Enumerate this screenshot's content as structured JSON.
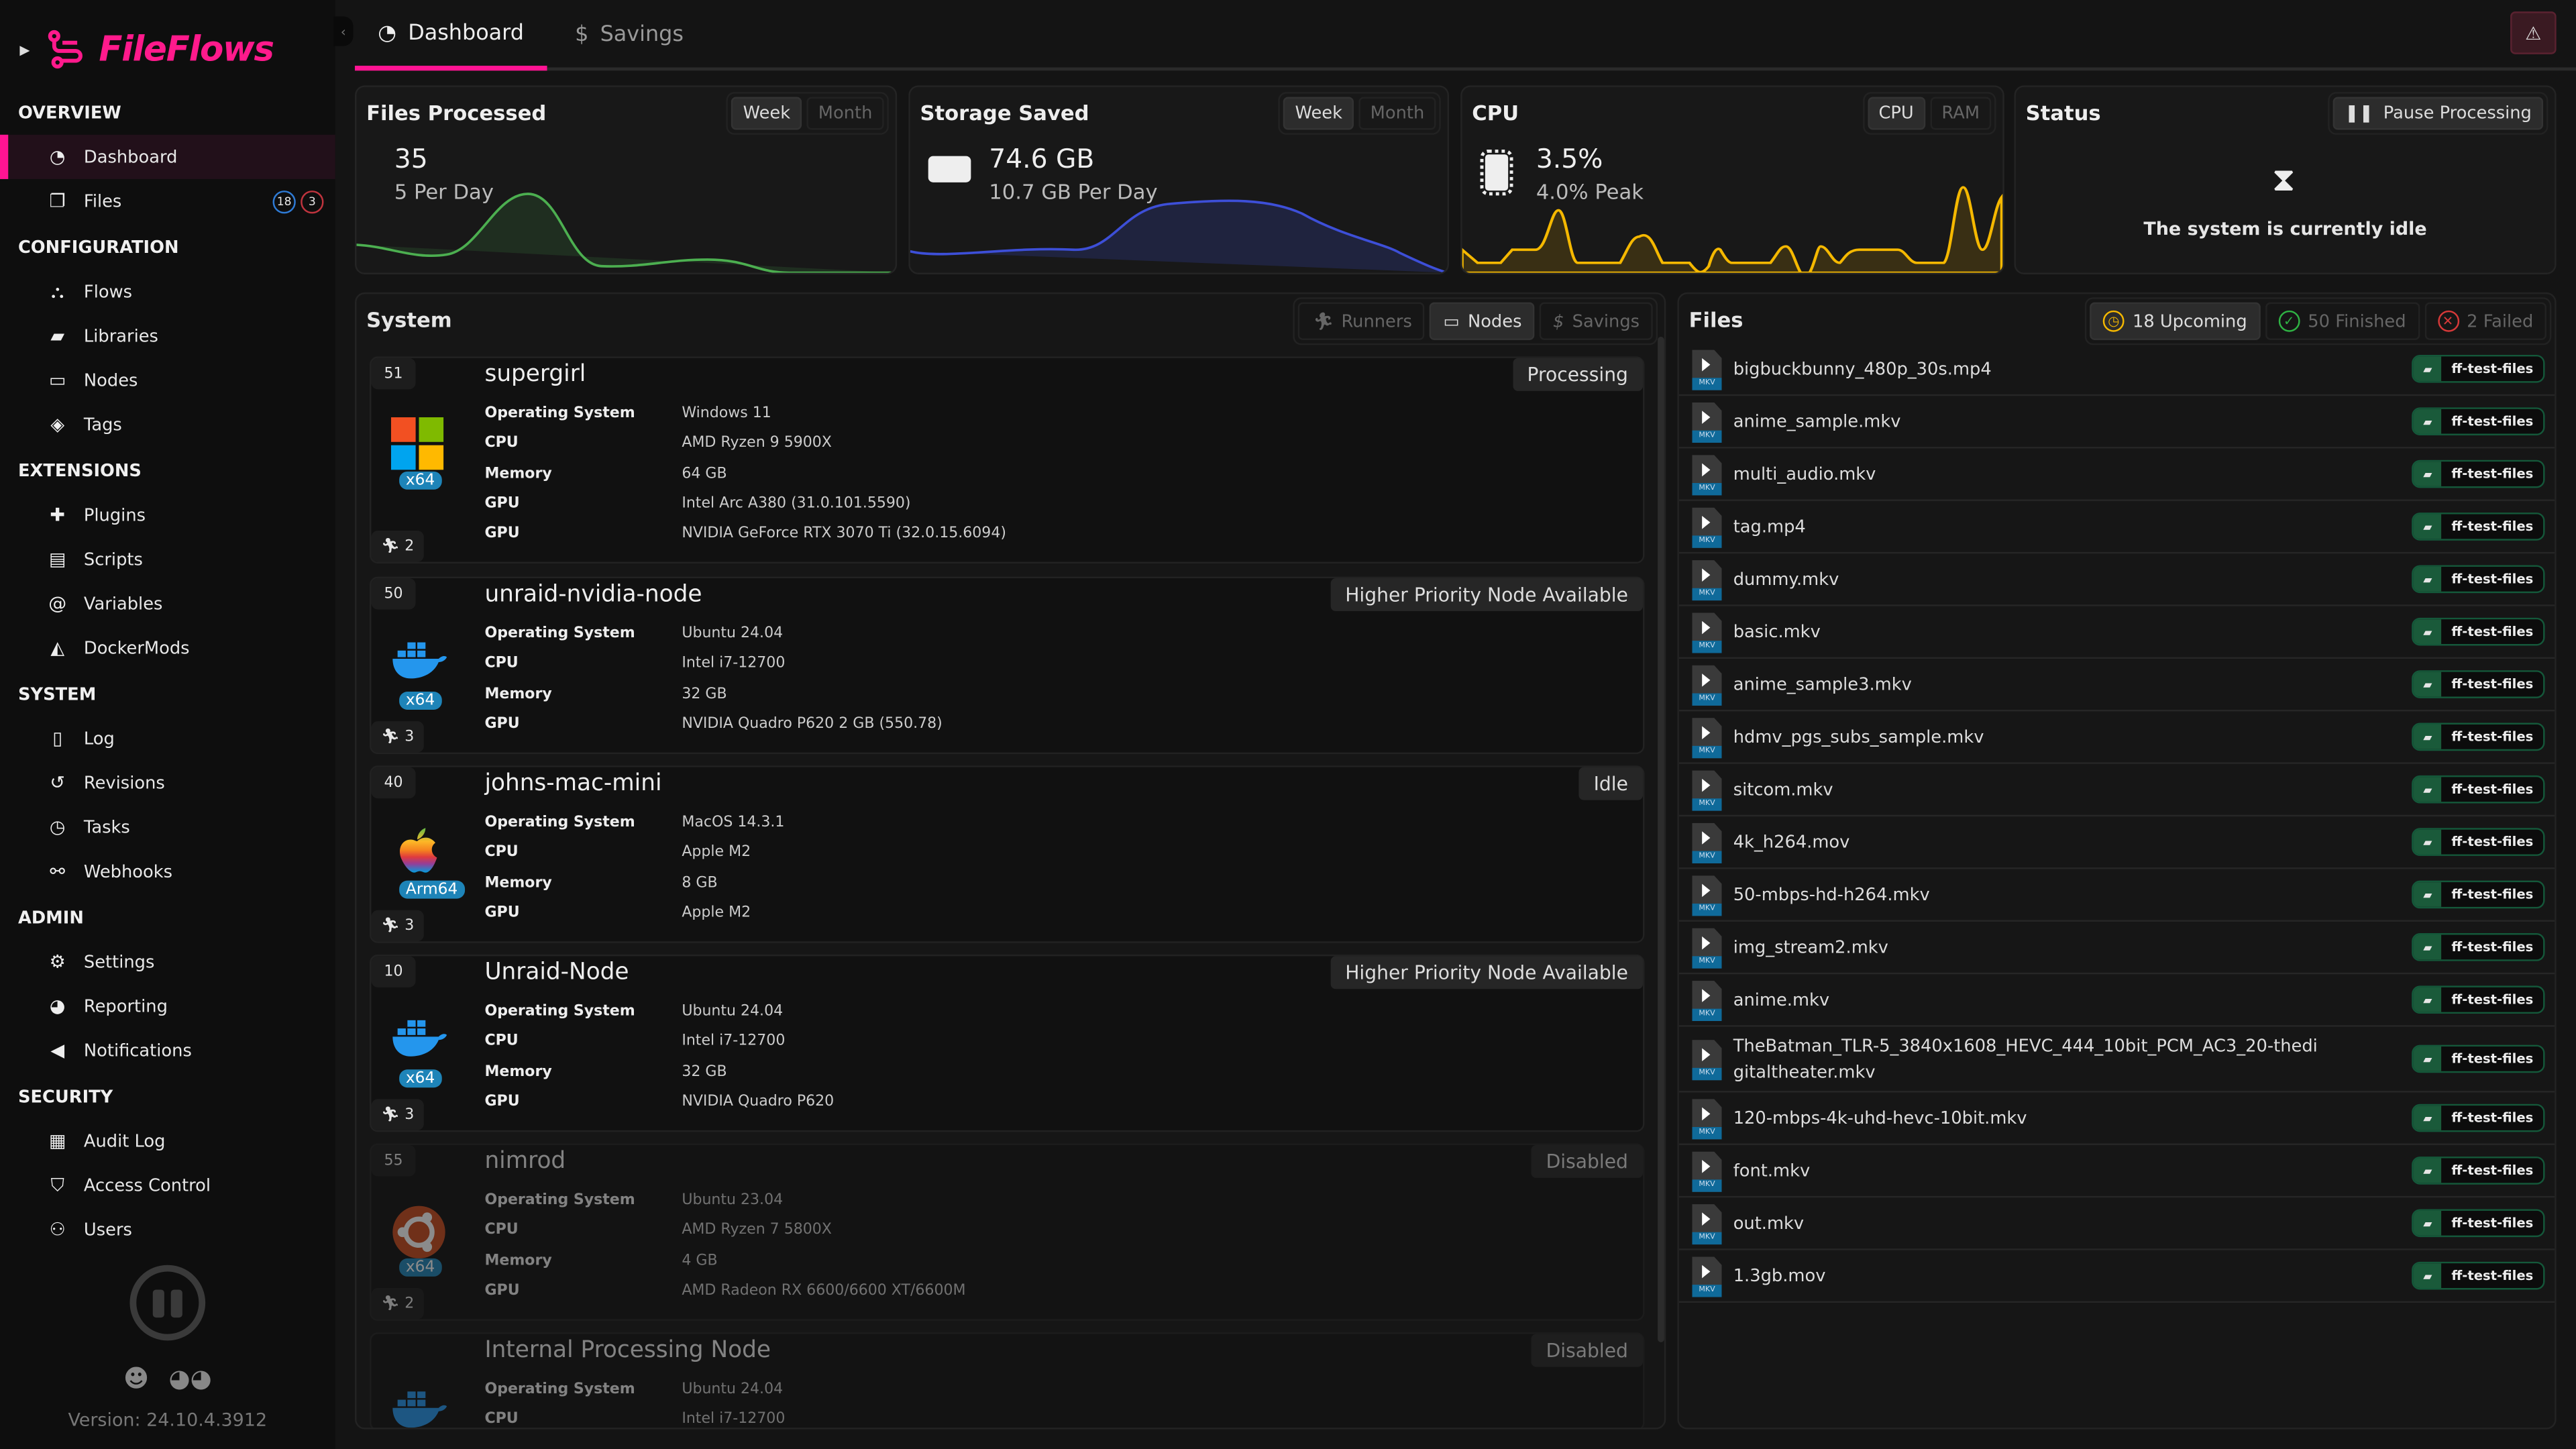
{
  "app": {
    "name": "FileFlows",
    "version": "Version: 24.10.4.3912",
    "accent": "#ff1493"
  },
  "sidebar": {
    "sections": [
      {
        "title": "OVERVIEW",
        "items": [
          {
            "label": "Dashboard",
            "icon": "pie-chart-icon",
            "active": true
          },
          {
            "label": "Files",
            "icon": "files-icon",
            "badges": [
              "18",
              "3"
            ]
          }
        ]
      },
      {
        "title": "CONFIGURATION",
        "items": [
          {
            "label": "Flows",
            "icon": "sitemap-icon"
          },
          {
            "label": "Libraries",
            "icon": "folder-icon"
          },
          {
            "label": "Nodes",
            "icon": "desktop-icon"
          },
          {
            "label": "Tags",
            "icon": "tags-icon"
          }
        ]
      },
      {
        "title": "EXTENSIONS",
        "items": [
          {
            "label": "Plugins",
            "icon": "puzzle-icon"
          },
          {
            "label": "Scripts",
            "icon": "scroll-icon"
          },
          {
            "label": "Variables",
            "icon": "at-icon"
          },
          {
            "label": "DockerMods",
            "icon": "docker-icon"
          }
        ]
      },
      {
        "title": "SYSTEM",
        "items": [
          {
            "label": "Log",
            "icon": "file-text-icon"
          },
          {
            "label": "Revisions",
            "icon": "history-icon"
          },
          {
            "label": "Tasks",
            "icon": "clock-icon"
          },
          {
            "label": "Webhooks",
            "icon": "webhook-icon"
          }
        ]
      },
      {
        "title": "ADMIN",
        "items": [
          {
            "label": "Settings",
            "icon": "cogs-icon"
          },
          {
            "label": "Reporting",
            "icon": "chart-pie-icon"
          },
          {
            "label": "Notifications",
            "icon": "bullhorn-icon"
          }
        ]
      },
      {
        "title": "SECURITY",
        "items": [
          {
            "label": "Audit Log",
            "icon": "clipboard-icon"
          },
          {
            "label": "Access Control",
            "icon": "shield-icon"
          },
          {
            "label": "Users",
            "icon": "users-icon"
          }
        ]
      }
    ]
  },
  "tabs": [
    {
      "label": "Dashboard",
      "icon": "pie-chart-icon",
      "active": true
    },
    {
      "label": "Savings",
      "icon": "dollar-icon",
      "active": false
    }
  ],
  "cards": {
    "files": {
      "title": "Files Processed",
      "range": [
        "Week",
        "Month"
      ],
      "selected": "Week",
      "value": "35",
      "sub": "5 Per Day",
      "color": "#4caf50"
    },
    "storage": {
      "title": "Storage Saved",
      "range": [
        "Week",
        "Month"
      ],
      "selected": "Week",
      "value": "74.6 GB",
      "sub": "10.7 GB Per Day",
      "color": "#3d4fd8"
    },
    "cpu": {
      "title": "CPU",
      "range": [
        "CPU",
        "RAM"
      ],
      "selected": "CPU",
      "value": "3.5%",
      "sub": "4.0% Peak",
      "color": "#f5b800"
    },
    "status": {
      "title": "Status",
      "button": "Pause Processing",
      "message": "The system is currently idle"
    }
  },
  "system": {
    "title": "System",
    "tabs": [
      "Runners",
      "Nodes",
      "Savings"
    ],
    "selected": "Nodes",
    "nodes": [
      {
        "num": "51",
        "name": "supergirl",
        "status": "Processing",
        "os": "windows",
        "arch": "x64",
        "runners": "2",
        "rows": [
          [
            "Operating System",
            "Windows 11"
          ],
          [
            "CPU",
            "AMD Ryzen 9 5900X"
          ],
          [
            "Memory",
            "64 GB"
          ],
          [
            "GPU",
            "Intel Arc A380 (31.0.101.5590)"
          ],
          [
            "GPU",
            "NVIDIA GeForce RTX 3070 Ti (32.0.15.6094)"
          ]
        ]
      },
      {
        "num": "50",
        "name": "unraid-nvidia-node",
        "status": "Higher Priority Node Available",
        "os": "docker",
        "arch": "x64",
        "runners": "3",
        "rows": [
          [
            "Operating System",
            "Ubuntu 24.04"
          ],
          [
            "CPU",
            "Intel i7-12700"
          ],
          [
            "Memory",
            "32 GB"
          ],
          [
            "GPU",
            "NVIDIA Quadro P620 2 GB (550.78)"
          ]
        ]
      },
      {
        "num": "40",
        "name": "johns-mac-mini",
        "status": "Idle",
        "os": "apple",
        "arch": "Arm64",
        "runners": "3",
        "rows": [
          [
            "Operating System",
            "MacOS 14.3.1"
          ],
          [
            "CPU",
            "Apple M2"
          ],
          [
            "Memory",
            "8 GB"
          ],
          [
            "GPU",
            "Apple M2"
          ]
        ]
      },
      {
        "num": "10",
        "name": "Unraid-Node",
        "status": "Higher Priority Node Available",
        "os": "docker",
        "arch": "x64",
        "runners": "3",
        "rows": [
          [
            "Operating System",
            "Ubuntu 24.04"
          ],
          [
            "CPU",
            "Intel i7-12700"
          ],
          [
            "Memory",
            "32 GB"
          ],
          [
            "GPU",
            "NVIDIA Quadro P620"
          ]
        ]
      },
      {
        "num": "55",
        "name": "nimrod",
        "status": "Disabled",
        "os": "ubuntu",
        "arch": "x64",
        "runners": "2",
        "disabled": true,
        "rows": [
          [
            "Operating System",
            "Ubuntu 23.04"
          ],
          [
            "CPU",
            "AMD Ryzen 7 5800X"
          ],
          [
            "Memory",
            "4 GB"
          ],
          [
            "GPU",
            "AMD Radeon RX 6600/6600 XT/6600M"
          ]
        ]
      },
      {
        "num": "",
        "name": "Internal Processing Node",
        "status": "Disabled",
        "os": "docker",
        "arch": "",
        "runners": "",
        "disabled": true,
        "rows": [
          [
            "Operating System",
            "Ubuntu 24.04"
          ],
          [
            "CPU",
            "Intel i7-12700"
          ]
        ]
      }
    ]
  },
  "files": {
    "title": "Files",
    "tabs": [
      {
        "label": "18 Upcoming",
        "icon": "clock-icon",
        "color": "#f5b800"
      },
      {
        "label": "50 Finished",
        "icon": "check-circle-icon",
        "color": "#2fb344"
      },
      {
        "label": "2 Failed",
        "icon": "x-circle-icon",
        "color": "#d63939"
      }
    ],
    "selected": "18 Upcoming",
    "items": [
      {
        "name": "bigbuckbunny_480p_30s.mp4",
        "library": "ff-test-files",
        "type": "MKV"
      },
      {
        "name": "anime_sample.mkv",
        "library": "ff-test-files",
        "type": "MKV"
      },
      {
        "name": "multi_audio.mkv",
        "library": "ff-test-files",
        "type": "MKV"
      },
      {
        "name": "tag.mp4",
        "library": "ff-test-files",
        "type": "MKV"
      },
      {
        "name": "dummy.mkv",
        "library": "ff-test-files",
        "type": "MKV"
      },
      {
        "name": "basic.mkv",
        "library": "ff-test-files",
        "type": "MKV"
      },
      {
        "name": "anime_sample3.mkv",
        "library": "ff-test-files",
        "type": "MKV"
      },
      {
        "name": "hdmv_pgs_subs_sample.mkv",
        "library": "ff-test-files",
        "type": "MKV"
      },
      {
        "name": "sitcom.mkv",
        "library": "ff-test-files",
        "type": "MKV"
      },
      {
        "name": "4k_h264.mov",
        "library": "ff-test-files",
        "type": "MKV"
      },
      {
        "name": "50-mbps-hd-h264.mkv",
        "library": "ff-test-files",
        "type": "MKV"
      },
      {
        "name": "img_stream2.mkv",
        "library": "ff-test-files",
        "type": "MKV"
      },
      {
        "name": "anime.mkv",
        "library": "ff-test-files",
        "type": "MKV"
      },
      {
        "name": "TheBatman_TLR-5_3840x1608_HEVC_444_10bit_PCM_AC3_20-thedigitaltheater.mkv",
        "library": "ff-test-files",
        "type": "MKV"
      },
      {
        "name": "120-mbps-4k-uhd-hevc-10bit.mkv",
        "library": "ff-test-files",
        "type": "MKV"
      },
      {
        "name": "font.mkv",
        "library": "ff-test-files",
        "type": "MKV"
      },
      {
        "name": "out.mkv",
        "library": "ff-test-files",
        "type": "MKV"
      },
      {
        "name": "1.3gb.mov",
        "library": "ff-test-files",
        "type": "MKV"
      }
    ]
  }
}
